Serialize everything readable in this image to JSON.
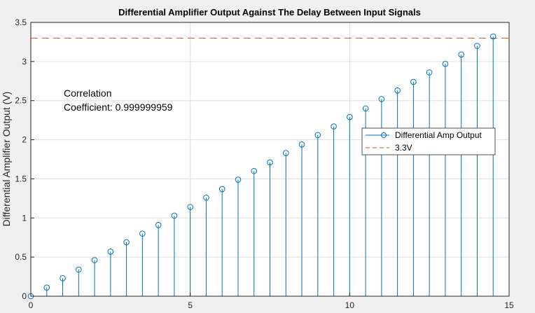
{
  "chart_data": {
    "type": "stem",
    "title": "Differential Amplifier Output Against The Delay Between Input Signals",
    "xlabel": "",
    "ylabel": "Differential Amplifier Output (V)",
    "xlim": [
      0,
      15
    ],
    "ylim": [
      0,
      3.5
    ],
    "xticks": [
      0,
      5,
      10,
      15
    ],
    "yticks": [
      0,
      0.5,
      1,
      1.5,
      2,
      2.5,
      3,
      3.5
    ],
    "grid": true,
    "series": [
      {
        "name": "Differential Amp Output",
        "color": "#0072BD",
        "x": [
          0,
          0.5,
          1,
          1.5,
          2,
          2.5,
          3,
          3.5,
          4,
          4.5,
          5,
          5.5,
          6,
          6.5,
          7,
          7.5,
          8,
          8.5,
          9,
          9.5,
          10,
          10.5,
          11,
          11.5,
          12,
          12.5,
          13,
          13.5,
          14,
          14.5
        ],
        "y": [
          0,
          0.11,
          0.23,
          0.34,
          0.46,
          0.57,
          0.69,
          0.8,
          0.91,
          1.03,
          1.14,
          1.26,
          1.37,
          1.49,
          1.6,
          1.71,
          1.83,
          1.94,
          2.06,
          2.17,
          2.29,
          2.4,
          2.52,
          2.63,
          2.74,
          2.86,
          2.97,
          3.09,
          3.2,
          3.32
        ]
      }
    ],
    "reference_line": {
      "name": "3.3V",
      "y": 3.3,
      "color": "#D95319",
      "style": "dashed"
    },
    "annotation": [
      "Correlation",
      "Coefficient: 0.999999959"
    ],
    "legend_position": "right"
  }
}
